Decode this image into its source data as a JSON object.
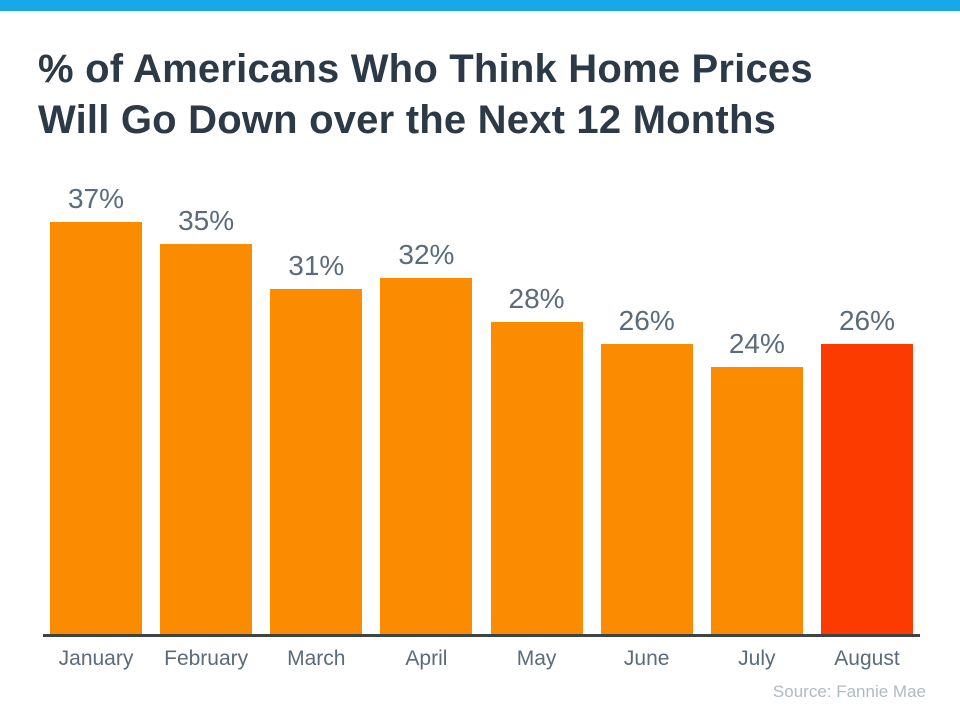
{
  "page": {
    "accent_bar_color": "#17A9E7",
    "background_color": "#FFFFFF"
  },
  "header": {
    "title_line1": "% of Americans Who Think Home Prices",
    "title_line2": "Will Go Down over the Next 12 Months",
    "title_color": "#2C3A47"
  },
  "chart_data": {
    "type": "bar",
    "title": "% of Americans Who Think Home Prices Will Go Down over the Next 12 Months",
    "categories": [
      "January",
      "February",
      "March",
      "April",
      "May",
      "June",
      "July",
      "August"
    ],
    "values": [
      37,
      35,
      31,
      32,
      28,
      26,
      24,
      26
    ],
    "value_labels": [
      "37%",
      "35%",
      "31%",
      "32%",
      "28%",
      "26%",
      "24%",
      "26%"
    ],
    "unit": "percent",
    "xlabel": "",
    "ylabel": "",
    "ylim": [
      0,
      37
    ],
    "grid": false,
    "legend": false,
    "default_bar_color": "#FB8B00",
    "highlight_bar_color": "#FB3B00",
    "highlight_index": 7,
    "value_label_color": "#5B6B7B",
    "category_label_color": "#5B6B7B",
    "axis_line_color": "#3F4345"
  },
  "footer": {
    "source": "Source: Fannie Mae",
    "source_color": "#B0BAC1"
  }
}
